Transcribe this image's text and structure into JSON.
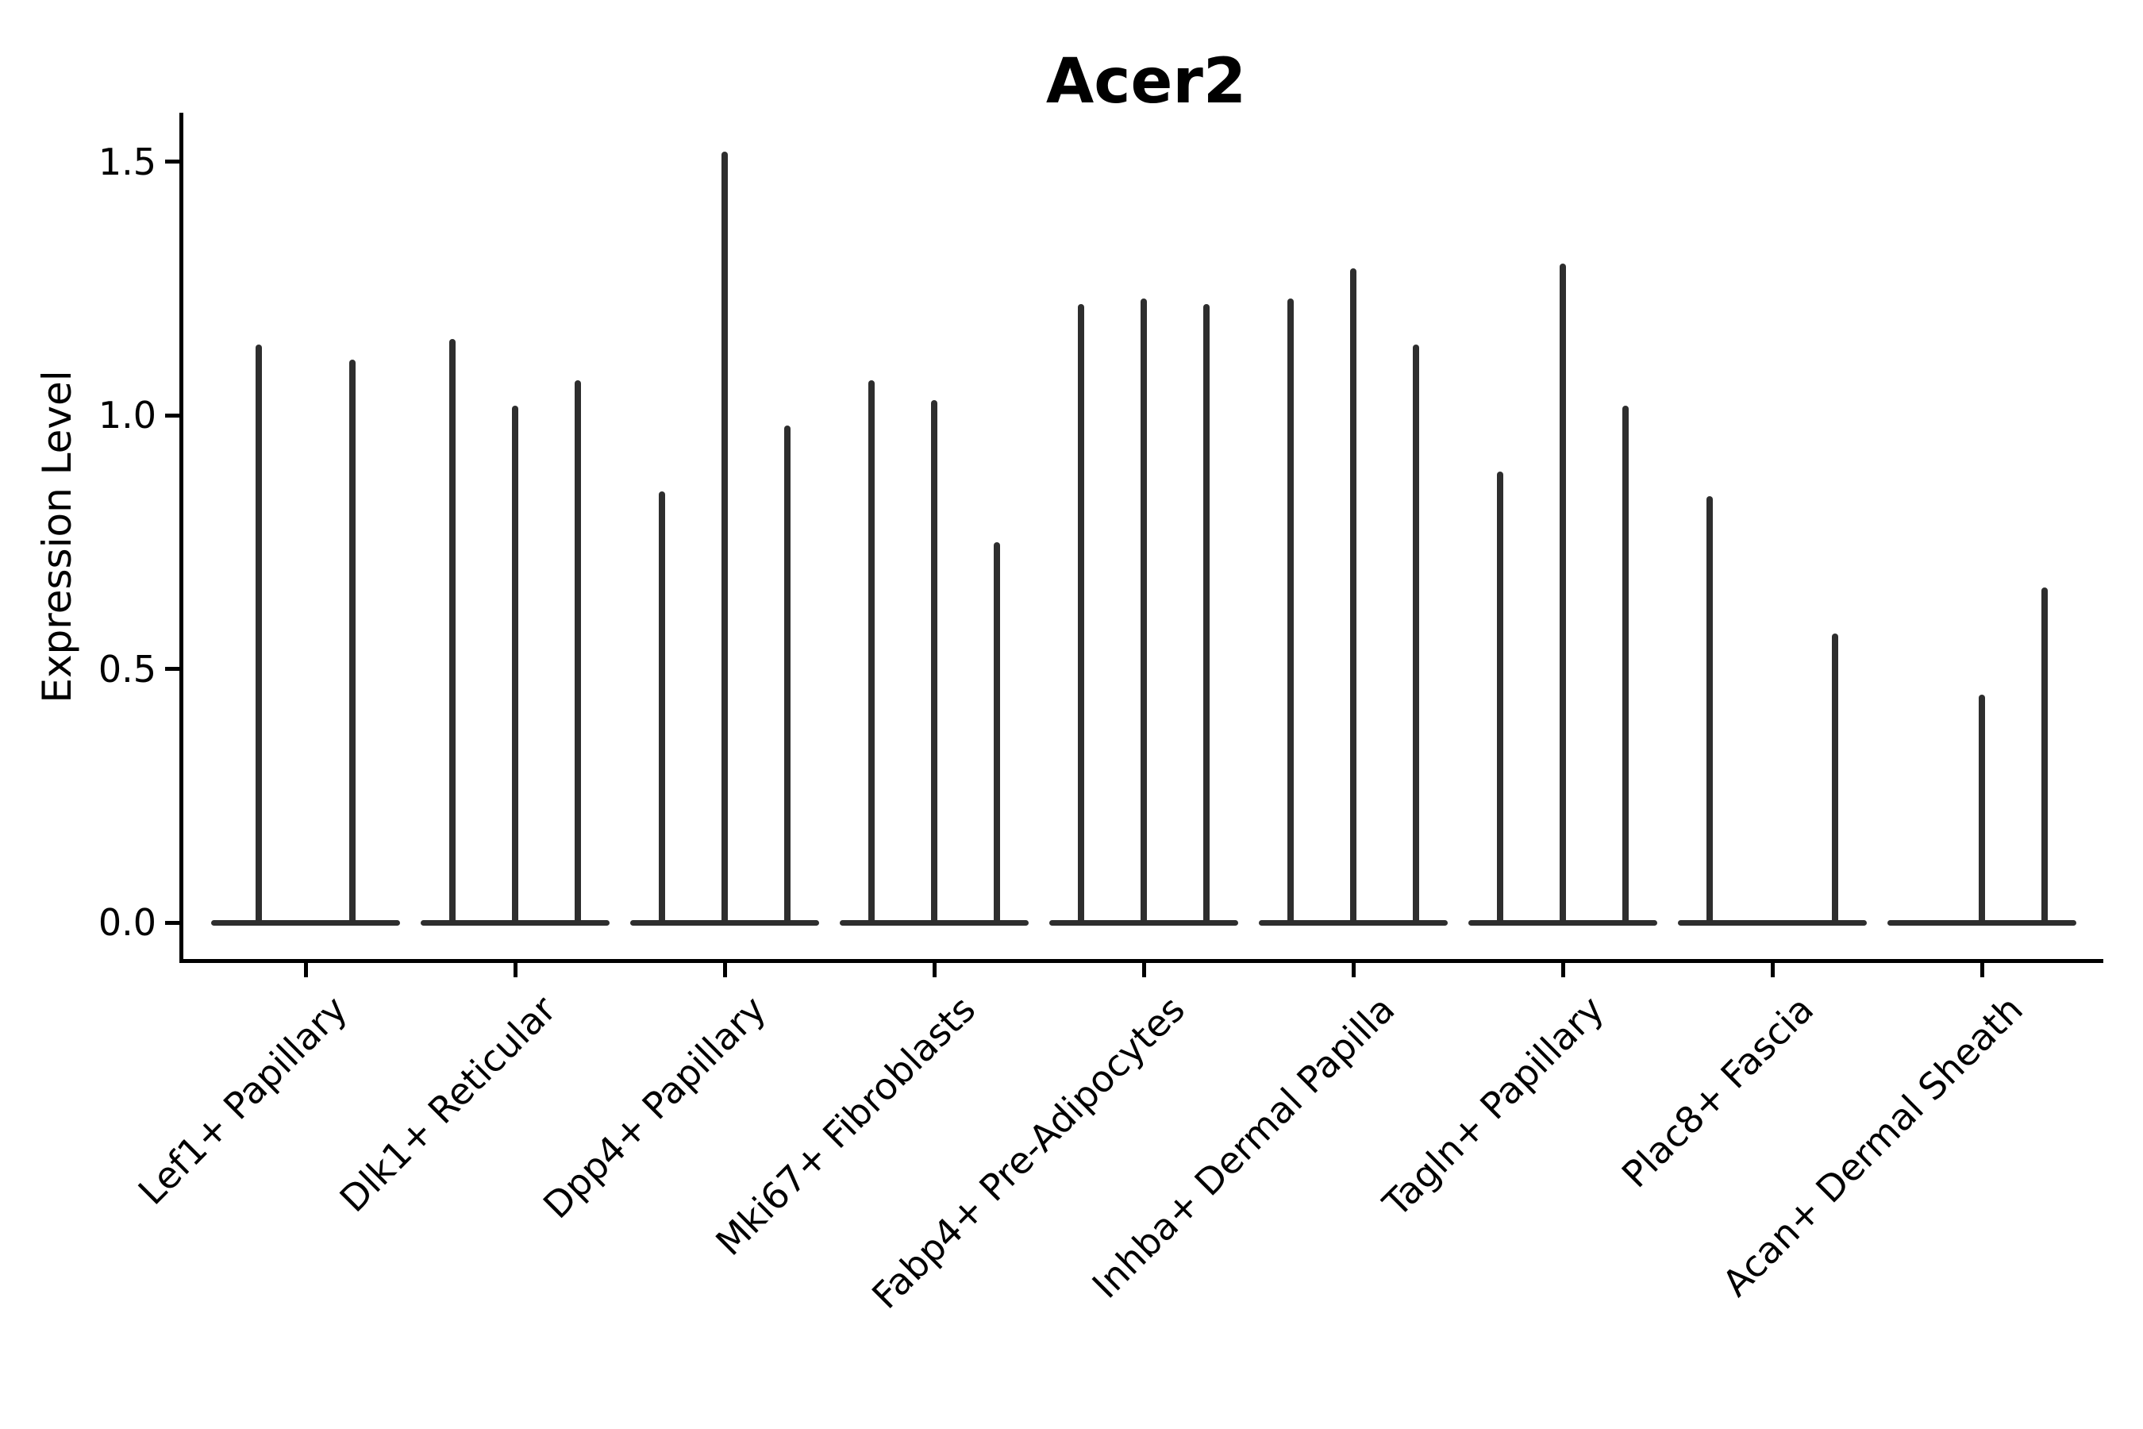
{
  "chart_data": {
    "type": "violin",
    "title": "Acer2",
    "ylabel": "Expression Level",
    "xlabel": "",
    "grid": false,
    "legend": "none",
    "ylim": [
      -0.076,
      1.603
    ],
    "ytick_labels": [
      "0.0",
      "0.5",
      "1.0",
      "1.5"
    ],
    "ytick_values": [
      0.0,
      0.5,
      1.0,
      1.5
    ],
    "categories": [
      "Lef1+ Papillary",
      "Dlk1+ Reticular",
      "Dpp4+ Papillary",
      "Mki67+ Fibroblasts",
      "Fabp4+ Pre-Adipocytes",
      "Inhba+ Dermal Papilla",
      "Tagln+ Papillary",
      "Plac8+ Fascia",
      "Acan+ Dermal Sheath"
    ],
    "groups": [
      {
        "label": "Lef1+ Papillary",
        "violin_max": [
          1.14,
          1.11
        ]
      },
      {
        "label": "Dlk1+ Reticular",
        "violin_max": [
          1.15,
          1.02,
          1.07
        ]
      },
      {
        "label": "Dpp4+ Papillary",
        "violin_max": [
          0.85,
          1.52,
          0.98
        ]
      },
      {
        "label": "Mki67+ Fibroblasts",
        "violin_max": [
          1.07,
          1.03,
          0.75
        ]
      },
      {
        "label": "Fabp4+ Pre-Adipocytes",
        "violin_max": [
          1.22,
          1.23,
          1.22
        ]
      },
      {
        "label": "Inhba+ Dermal Papilla",
        "violin_max": [
          1.23,
          1.29,
          1.14
        ]
      },
      {
        "label": "Tagln+ Papillary",
        "violin_max": [
          0.89,
          1.3,
          1.02
        ]
      },
      {
        "label": "Plac8+ Fascia",
        "violin_max": [
          0.84,
          0,
          0.57
        ]
      },
      {
        "label": "Acan+ Dermal Sheath",
        "violin_max": [
          0,
          0.45,
          0.66
        ]
      }
    ],
    "colors": {
      "violin_line": "#2e2e2e",
      "axis": "#000000",
      "text": "#000000",
      "background": "#ffffff"
    }
  }
}
